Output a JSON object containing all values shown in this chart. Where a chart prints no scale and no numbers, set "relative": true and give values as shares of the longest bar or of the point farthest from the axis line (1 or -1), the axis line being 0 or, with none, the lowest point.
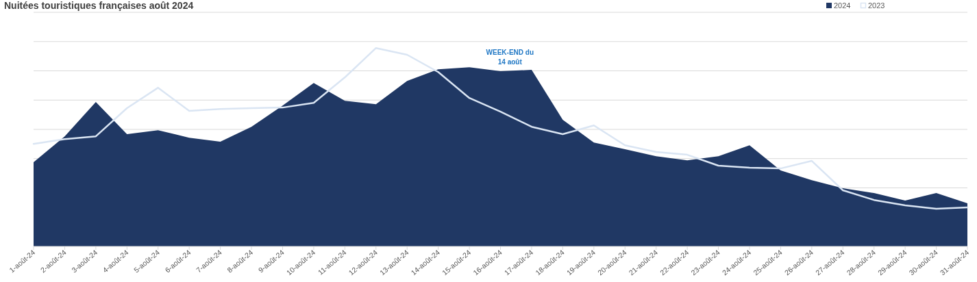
{
  "chart_data": {
    "type": "area",
    "title": "Nuitées touristiques françaises août 2024",
    "relative": true,
    "grid": "y",
    "legend": "top right",
    "categories": [
      "1-août-24",
      "2-août-24",
      "3-août-24",
      "4-août-24",
      "5-août-24",
      "6-août-24",
      "7-août-24",
      "8-août-24",
      "9-août-24",
      "10-août-24",
      "11-août-24",
      "12-août-24",
      "13-août-24",
      "14-août-24",
      "15-août-24",
      "16-août-24",
      "17-août-24",
      "18-août-24",
      "19-août-24",
      "20-août-24",
      "21-août-24",
      "22-août-24",
      "23-août-24",
      "24-août-24",
      "25-août-24",
      "26-août-24",
      "27-août-24",
      "28-août-24",
      "29-août-24",
      "30-août-24",
      "31-août-24"
    ],
    "series": [
      {
        "name": "2024",
        "color": "#203864",
        "values": [
          0.424,
          0.555,
          0.728,
          0.566,
          0.586,
          0.548,
          0.528,
          0.603,
          0.71,
          0.824,
          0.734,
          0.717,
          0.834,
          0.893,
          0.903,
          0.883,
          0.89,
          0.638,
          0.524,
          0.49,
          0.455,
          0.434,
          0.455,
          0.51,
          0.383,
          0.334,
          0.293,
          0.269,
          0.231,
          0.269,
          0.217
        ]
      },
      {
        "name": "2023",
        "type": "line",
        "color": "#dae5f3",
        "values": [
          0.517,
          0.541,
          0.555,
          0.697,
          0.8,
          0.683,
          0.693,
          0.697,
          0.7,
          0.724,
          0.852,
          1,
          0.966,
          0.879,
          0.748,
          0.679,
          0.603,
          0.566,
          0.61,
          0.51,
          0.476,
          0.462,
          0.407,
          0.397,
          0.393,
          0.431,
          0.283,
          0.234,
          0.207,
          0.19,
          0.197
        ]
      }
    ],
    "annotations": [
      "WEEK-END du 14 août"
    ]
  }
}
